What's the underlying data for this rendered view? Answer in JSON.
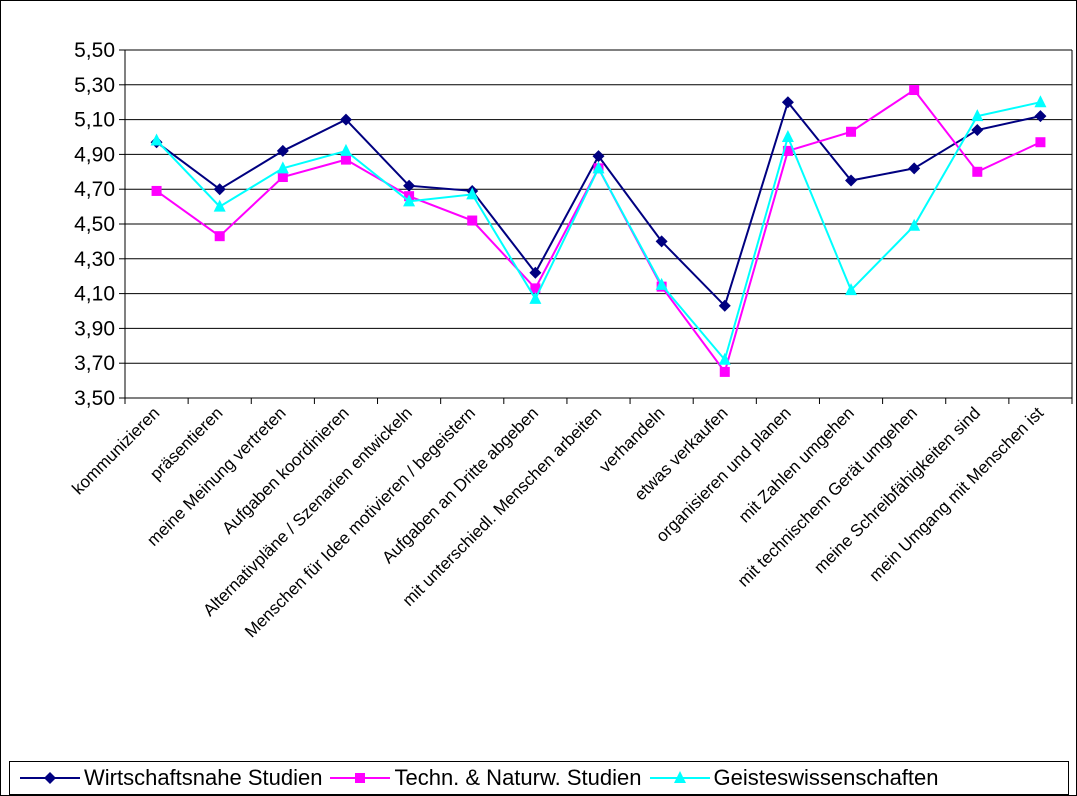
{
  "chart_data": {
    "type": "line",
    "title": "",
    "xlabel": "",
    "ylabel": "",
    "ylim": [
      3.5,
      5.5
    ],
    "y_ticks": [
      "5,50",
      "5,30",
      "5,10",
      "4,90",
      "4,70",
      "4,50",
      "4,30",
      "4,10",
      "3,90",
      "3,70",
      "3,50"
    ],
    "grid": "horizontal",
    "legend_position": "bottom",
    "categories": [
      "kommunizieren",
      "präsentieren",
      "meine Meinung vertreten",
      "Aufgaben koordinieren",
      "Alternativpläne / Szenarien entwickeln",
      "Menschen für Idee motivieren / begeistern",
      "Aufgaben an Dritte abgeben",
      "mit unterschiedl. Menschen arbeiten",
      "verhandeln",
      "etwas verkaufen",
      "organisieren und planen",
      "mit Zahlen umgehen",
      "mit technischem Gerät umgehen",
      "meine Schreibfähigkeiten sind",
      "mein Umgang mit Menschen ist"
    ],
    "series": [
      {
        "name": "Wirtschaftsnahe Studien",
        "color": "#000080",
        "marker": "diamond",
        "values": [
          4.97,
          4.7,
          4.92,
          5.1,
          4.72,
          4.69,
          4.22,
          4.89,
          4.4,
          4.03,
          5.2,
          4.75,
          4.82,
          5.04,
          5.12
        ]
      },
      {
        "name": "Techn. & Naturw. Studien",
        "color": "#ff00ff",
        "marker": "square",
        "values": [
          4.69,
          4.43,
          4.77,
          4.87,
          4.66,
          4.52,
          4.13,
          4.82,
          4.14,
          3.65,
          4.92,
          5.03,
          5.27,
          4.8,
          4.97
        ]
      },
      {
        "name": "Geisteswissenschaften",
        "color": "#00ffff",
        "marker": "triangle",
        "values": [
          4.98,
          4.6,
          4.82,
          4.92,
          4.63,
          4.67,
          4.07,
          4.82,
          4.15,
          3.72,
          5.0,
          4.12,
          4.49,
          5.12,
          5.2
        ]
      }
    ]
  }
}
